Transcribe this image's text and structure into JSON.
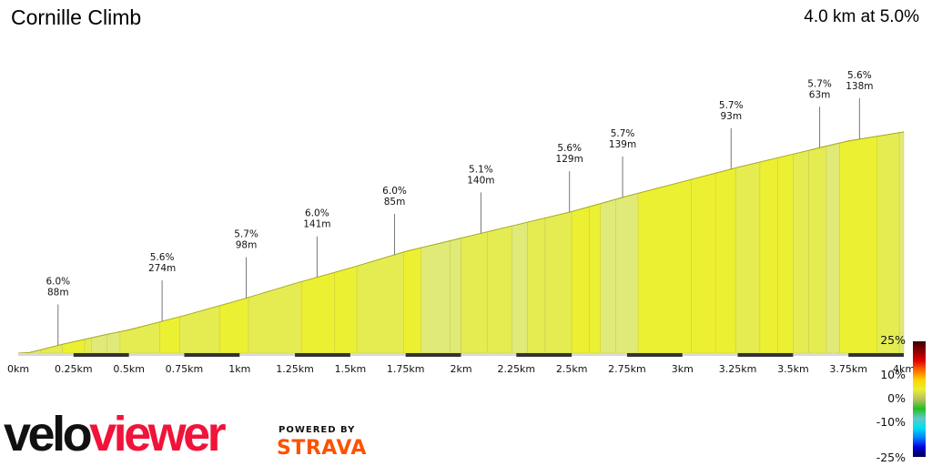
{
  "header": {
    "title": "Cornille Climb",
    "summary": "4.0 km at 5.0%"
  },
  "branding": {
    "logo_part1": "velo",
    "logo_part2": "viewer",
    "powered_by": "POWERED BY",
    "strava": "STRAVA",
    "colors": {
      "velo": "#111111",
      "viewer": "#f0133a",
      "strava": "#fc5200"
    }
  },
  "chart_data": {
    "type": "area",
    "title": "Cornille Climb",
    "subtitle": "4.0 km at 5.0%",
    "xlabel": "Distance",
    "ylabel": "Elevation",
    "x_ticks": [
      "0km",
      "0.25km",
      "0.5km",
      "0.75km",
      "1km",
      "1.25km",
      "1.5km",
      "1.75km",
      "2km",
      "2.25km",
      "2.5km",
      "2.75km",
      "3km",
      "3.25km",
      "3.5km",
      "3.75km",
      "4km"
    ],
    "x_range_km": [
      0,
      4
    ],
    "total_distance_km": 4.0,
    "average_gradient_pct": 5.0,
    "elevation_gain_m_approx": 200,
    "profile_points": [
      {
        "km": 0.0,
        "rel_elev": 0
      },
      {
        "km": 0.05,
        "rel_elev": 0.5
      },
      {
        "km": 0.1,
        "rel_elev": 3
      },
      {
        "km": 0.2,
        "rel_elev": 8
      },
      {
        "km": 0.4,
        "rel_elev": 17
      },
      {
        "km": 0.5,
        "rel_elev": 21
      },
      {
        "km": 0.75,
        "rel_elev": 34
      },
      {
        "km": 1.0,
        "rel_elev": 48
      },
      {
        "km": 1.25,
        "rel_elev": 63
      },
      {
        "km": 1.5,
        "rel_elev": 77
      },
      {
        "km": 1.75,
        "rel_elev": 92
      },
      {
        "km": 2.0,
        "rel_elev": 104
      },
      {
        "km": 2.25,
        "rel_elev": 116
      },
      {
        "km": 2.5,
        "rel_elev": 128
      },
      {
        "km": 2.75,
        "rel_elev": 142
      },
      {
        "km": 3.0,
        "rel_elev": 155
      },
      {
        "km": 3.25,
        "rel_elev": 168
      },
      {
        "km": 3.5,
        "rel_elev": 180
      },
      {
        "km": 3.75,
        "rel_elev": 192
      },
      {
        "km": 4.0,
        "rel_elev": 200
      }
    ],
    "segment_annotations": [
      {
        "gradient": "6.0%",
        "length": "88m",
        "km": 0.18
      },
      {
        "gradient": "5.6%",
        "length": "274m",
        "km": 0.65
      },
      {
        "gradient": "5.7%",
        "length": "98m",
        "km": 1.03
      },
      {
        "gradient": "6.0%",
        "length": "141m",
        "km": 1.35
      },
      {
        "gradient": "6.0%",
        "length": "85m",
        "km": 1.7
      },
      {
        "gradient": "5.1%",
        "length": "140m",
        "km": 2.09
      },
      {
        "gradient": "5.6%",
        "length": "129m",
        "km": 2.49
      },
      {
        "gradient": "5.7%",
        "length": "139m",
        "km": 2.73
      },
      {
        "gradient": "5.7%",
        "length": "93m",
        "km": 3.22
      },
      {
        "gradient": "5.7%",
        "length": "63m",
        "km": 3.62
      },
      {
        "gradient": "5.6%",
        "length": "138m",
        "km": 3.8
      }
    ],
    "gradient_legend": {
      "labels": [
        "25%",
        "10%",
        "0%",
        "-10%",
        "-25%"
      ],
      "colors": [
        "#3a0000",
        "#8b0000",
        "#e00000",
        "#ff6a00",
        "#ffd200",
        "#e8f030",
        "#b8c060",
        "#22c022",
        "#60c8c8",
        "#00e0f0",
        "#0080ff",
        "#0000e0",
        "#00004a"
      ]
    },
    "fill_colors": {
      "steep": "#ecf032",
      "moderate": "#e4ec52",
      "gentle": "#e0ea78",
      "flat": "#7ac040"
    },
    "grid": false,
    "legend_position": "right"
  }
}
